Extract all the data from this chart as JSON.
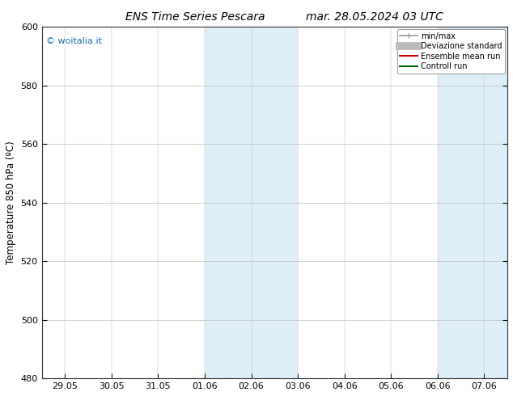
{
  "title_left": "ENS Time Series Pescara",
  "title_right": "mar. 28.05.2024 03 UTC",
  "ylabel": "Temperature 850 hPa (ºC)",
  "ylim": [
    480,
    600
  ],
  "yticks": [
    480,
    500,
    520,
    540,
    560,
    580,
    600
  ],
  "x_tick_labels": [
    "29.05",
    "30.05",
    "31.05",
    "01.06",
    "02.06",
    "03.06",
    "04.06",
    "05.06",
    "06.06",
    "07.06"
  ],
  "x_tick_positions": [
    0,
    1,
    2,
    3,
    4,
    5,
    6,
    7,
    8,
    9
  ],
  "xlim": [
    -0.5,
    9.5
  ],
  "shaded_bands": [
    {
      "x_start": 3.0,
      "x_end": 5.0,
      "color": "#ddeef8"
    },
    {
      "x_start": 8.0,
      "x_end": 9.5,
      "color": "#ddeef8"
    }
  ],
  "background_color": "#ffffff",
  "plot_bg_color": "#ffffff",
  "grid_color": "#bbbbbb",
  "watermark_text": "© woitalia.it",
  "watermark_color": "#1a6fa8",
  "legend_items": [
    {
      "label": "min/max",
      "color": "#999999",
      "lw": 1.2,
      "style": "solid",
      "type": "minmax"
    },
    {
      "label": "Deviazione standard",
      "color": "#bbbbbb",
      "lw": 7,
      "style": "solid",
      "type": "band"
    },
    {
      "label": "Ensemble mean run",
      "color": "#cc0000",
      "lw": 1.5,
      "style": "solid",
      "type": "line"
    },
    {
      "label": "Controll run",
      "color": "#006600",
      "lw": 1.5,
      "style": "solid",
      "type": "line"
    }
  ],
  "title_fontsize": 10,
  "tick_fontsize": 8,
  "label_fontsize": 8.5
}
